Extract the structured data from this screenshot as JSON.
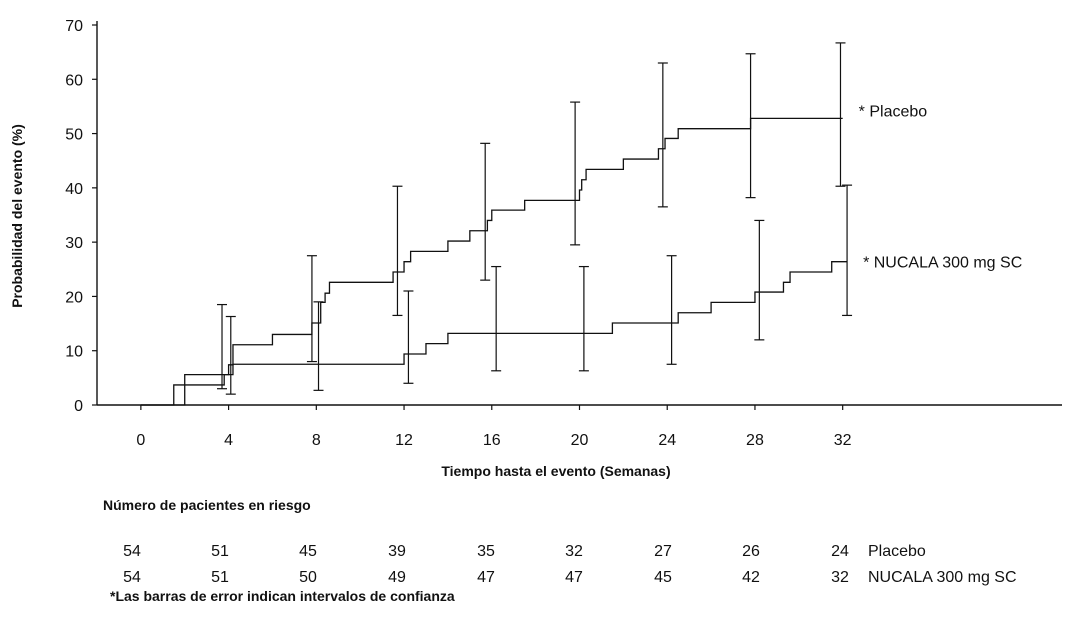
{
  "chart_data": {
    "type": "line",
    "subtype": "kaplan-meier-step",
    "xlabel": "Tiempo hasta el evento (Semanas)",
    "ylabel": "Probabilidad del evento (%)",
    "xlim": [
      -2,
      42
    ],
    "ylim": [
      0,
      70
    ],
    "xticks": [
      0,
      4,
      8,
      12,
      16,
      20,
      24,
      28,
      32
    ],
    "yticks": [
      0,
      10,
      20,
      30,
      40,
      50,
      60,
      70
    ],
    "grid": false,
    "series": [
      {
        "name": "* Placebo",
        "x": [
          0,
          1.5,
          2,
          4,
          4.2,
          6,
          7.8,
          8.2,
          8.4,
          8.6,
          11.5,
          12,
          12.3,
          14,
          15,
          15.8,
          16,
          16.5,
          17.5,
          19.8,
          20,
          20.1,
          20.3,
          22,
          23.6,
          23.9,
          24.5,
          27.8,
          32
        ],
        "y": [
          0,
          3.7,
          5.6,
          7.4,
          11.1,
          13,
          15.1,
          18.9,
          20.6,
          22.6,
          24.5,
          26.4,
          28.3,
          30.2,
          32.1,
          34,
          35.9,
          35.9,
          37.7,
          37.7,
          39.6,
          41.5,
          43.4,
          45.3,
          47.2,
          49.1,
          50.9,
          52.8,
          52.8
        ],
        "ci": [
          {
            "x": 3.7,
            "lo": 3,
            "hi": 18.5
          },
          {
            "x": 7.8,
            "lo": 8,
            "hi": 27.5
          },
          {
            "x": 11.7,
            "lo": 16.5,
            "hi": 40.3
          },
          {
            "x": 15.7,
            "lo": 23,
            "hi": 48.2
          },
          {
            "x": 19.8,
            "lo": 29.5,
            "hi": 55.8
          },
          {
            "x": 23.8,
            "lo": 36.5,
            "hi": 63
          },
          {
            "x": 27.8,
            "lo": 38.2,
            "hi": 64.7
          },
          {
            "x": 31.9,
            "lo": 40.3,
            "hi": 66.7
          }
        ]
      },
      {
        "name": "* NUCALA 300 mg SC",
        "x": [
          0,
          2,
          3.8,
          4.2,
          12,
          13,
          14,
          21.5,
          24.5,
          26,
          28,
          29.3,
          29.6,
          31.5,
          32.2
        ],
        "y": [
          0,
          3.7,
          5.6,
          7.5,
          9.4,
          11.3,
          13.2,
          15.1,
          17,
          18.9,
          20.8,
          22.6,
          24.5,
          26.4,
          26.4
        ],
        "ci": [
          {
            "x": 4.1,
            "lo": 2,
            "hi": 16.3
          },
          {
            "x": 8.1,
            "lo": 2.7,
            "hi": 19
          },
          {
            "x": 12.2,
            "lo": 4,
            "hi": 21
          },
          {
            "x": 16.2,
            "lo": 6.3,
            "hi": 25.5
          },
          {
            "x": 20.2,
            "lo": 6.3,
            "hi": 25.5
          },
          {
            "x": 24.2,
            "lo": 7.5,
            "hi": 27.5
          },
          {
            "x": 28.2,
            "lo": 12,
            "hi": 34
          },
          {
            "x": 32.2,
            "lo": 16.5,
            "hi": 40.5
          }
        ]
      }
    ]
  },
  "risk_table": {
    "title": "Número de pacientes en riesgo",
    "rows": [
      {
        "label": "Placebo",
        "values": [
          "54",
          "51",
          "45",
          "39",
          "35",
          "32",
          "27",
          "26",
          "24"
        ]
      },
      {
        "label": "NUCALA 300 mg SC",
        "values": [
          "54",
          "51",
          "50",
          "49",
          "47",
          "47",
          "45",
          "42",
          "32"
        ]
      }
    ]
  },
  "footnote": "*Las barras de error indican intervalos de confianza"
}
